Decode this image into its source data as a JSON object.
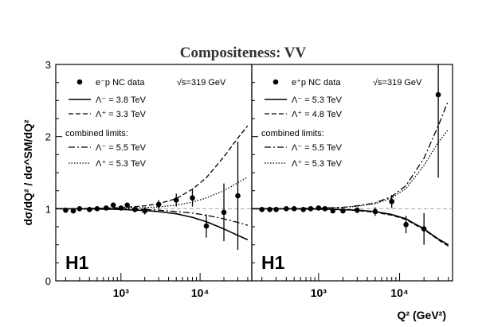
{
  "chart_data": {
    "type": "scatter",
    "title": "Compositeness: VV",
    "ylabel": "dσ/dQ² / dσ^SM/dQ²",
    "xlabel": "Q² (GeV²)",
    "xscale": "log",
    "xlim": [
      150,
      45000
    ],
    "ylim": [
      0,
      3
    ],
    "yticks": [
      0,
      1,
      2,
      3
    ],
    "xtick_labels": [
      "10³",
      "10⁴"
    ],
    "reference_line": 1,
    "panels": [
      {
        "name": "e-p",
        "logo": "H1",
        "sqrt_s": "√s=319 GeV",
        "legend": [
          {
            "style": "marker",
            "label": "e⁻p NC data"
          },
          {
            "style": "solid",
            "label": "Λ⁻ = 3.8 TeV"
          },
          {
            "style": "dashed",
            "label": "Λ⁺ = 3.3 TeV"
          },
          {
            "style": "header",
            "label": "combined limits:"
          },
          {
            "style": "dashdot",
            "label": "Λ⁻ = 5.5 TeV"
          },
          {
            "style": "dotted",
            "label": "Λ⁺ = 5.3 TeV"
          }
        ],
        "data": {
          "x": [
            200,
            250,
            300,
            400,
            500,
            650,
            800,
            1000,
            1200,
            1500,
            2000,
            3000,
            5000,
            8000,
            12000,
            20000,
            30000
          ],
          "y": [
            0.98,
            0.97,
            1.0,
            0.99,
            1.0,
            1.01,
            1.05,
            1.01,
            1.05,
            0.99,
            0.97,
            1.06,
            1.12,
            1.15,
            0.76,
            0.95,
            1.18
          ],
          "err": [
            0.02,
            0.02,
            0.02,
            0.02,
            0.02,
            0.02,
            0.03,
            0.03,
            0.03,
            0.04,
            0.05,
            0.06,
            0.09,
            0.12,
            0.16,
            0.4,
            0.75
          ]
        },
        "curves": [
          {
            "style": "solid",
            "x": [
              150,
              500,
              1000,
              2000,
              3000,
              5000,
              8000,
              12000,
              20000,
              30000,
              40000
            ],
            "y": [
              1.0,
              0.996,
              0.99,
              0.975,
              0.96,
              0.93,
              0.88,
              0.82,
              0.72,
              0.63,
              0.57
            ]
          },
          {
            "style": "dashed",
            "x": [
              150,
              500,
              1000,
              2000,
              3000,
              5000,
              8000,
              12000,
              20000,
              30000,
              40000
            ],
            "y": [
              1.0,
              1.005,
              1.015,
              1.04,
              1.07,
              1.14,
              1.27,
              1.43,
              1.72,
              1.98,
              2.15
            ]
          },
          {
            "style": "dashdot",
            "x": [
              150,
              500,
              1000,
              2000,
              3000,
              5000,
              8000,
              12000,
              20000,
              30000,
              40000
            ],
            "y": [
              1.0,
              0.998,
              0.995,
              0.99,
              0.98,
              0.96,
              0.94,
              0.91,
              0.86,
              0.81,
              0.77
            ]
          },
          {
            "style": "dotted",
            "x": [
              150,
              500,
              1000,
              2000,
              3000,
              5000,
              8000,
              12000,
              20000,
              30000,
              40000
            ],
            "y": [
              1.0,
              1.002,
              1.006,
              1.015,
              1.025,
              1.05,
              1.09,
              1.15,
              1.25,
              1.36,
              1.44
            ]
          }
        ]
      },
      {
        "name": "e+p",
        "logo": "H1",
        "sqrt_s": "√s=319 GeV",
        "legend": [
          {
            "style": "marker",
            "label": "e⁺p NC data"
          },
          {
            "style": "solid",
            "label": "Λ⁻ = 5.3 TeV"
          },
          {
            "style": "dashed",
            "label": "Λ⁺ = 4.8 TeV"
          },
          {
            "style": "header",
            "label": "combined limits:"
          },
          {
            "style": "dashdot",
            "label": "Λ⁻ = 5.5 TeV"
          },
          {
            "style": "dotted",
            "label": "Λ⁺ = 5.3 TeV"
          }
        ],
        "data": {
          "x": [
            200,
            250,
            300,
            400,
            500,
            650,
            800,
            1000,
            1200,
            1500,
            2000,
            3000,
            5000,
            8000,
            12000,
            20000,
            30000
          ],
          "y": [
            0.99,
            0.99,
            0.99,
            1.0,
            1.0,
            0.99,
            1.0,
            1.01,
            1.0,
            0.97,
            0.97,
            0.98,
            0.96,
            1.1,
            0.78,
            0.72,
            2.58
          ],
          "err": [
            0.02,
            0.02,
            0.02,
            0.02,
            0.02,
            0.02,
            0.02,
            0.02,
            0.02,
            0.03,
            0.03,
            0.04,
            0.06,
            0.09,
            0.12,
            0.22,
            1.15
          ]
        },
        "curves": [
          {
            "style": "solid",
            "x": [
              150,
              500,
              1000,
              2000,
              3000,
              5000,
              8000,
              12000,
              20000,
              30000,
              40000
            ],
            "y": [
              1.0,
              0.998,
              0.995,
              0.988,
              0.98,
              0.96,
              0.92,
              0.86,
              0.72,
              0.58,
              0.5
            ]
          },
          {
            "style": "dashed",
            "x": [
              150,
              500,
              1000,
              2000,
              3000,
              5000,
              8000,
              12000,
              20000,
              30000,
              40000
            ],
            "y": [
              1.0,
              0.998,
              0.994,
              0.985,
              0.975,
              0.95,
              0.91,
              0.85,
              0.71,
              0.57,
              0.48
            ]
          },
          {
            "style": "dashdot",
            "x": [
              150,
              500,
              1000,
              2000,
              3000,
              5000,
              8000,
              12000,
              20000,
              30000,
              40000
            ],
            "y": [
              1.0,
              1.002,
              1.008,
              1.02,
              1.04,
              1.08,
              1.17,
              1.32,
              1.7,
              2.15,
              2.5
            ]
          },
          {
            "style": "dotted",
            "x": [
              150,
              500,
              1000,
              2000,
              3000,
              5000,
              8000,
              12000,
              20000,
              30000,
              40000
            ],
            "y": [
              1.0,
              1.002,
              1.007,
              1.018,
              1.035,
              1.07,
              1.15,
              1.28,
              1.6,
              1.92,
              2.1
            ]
          }
        ]
      }
    ]
  }
}
